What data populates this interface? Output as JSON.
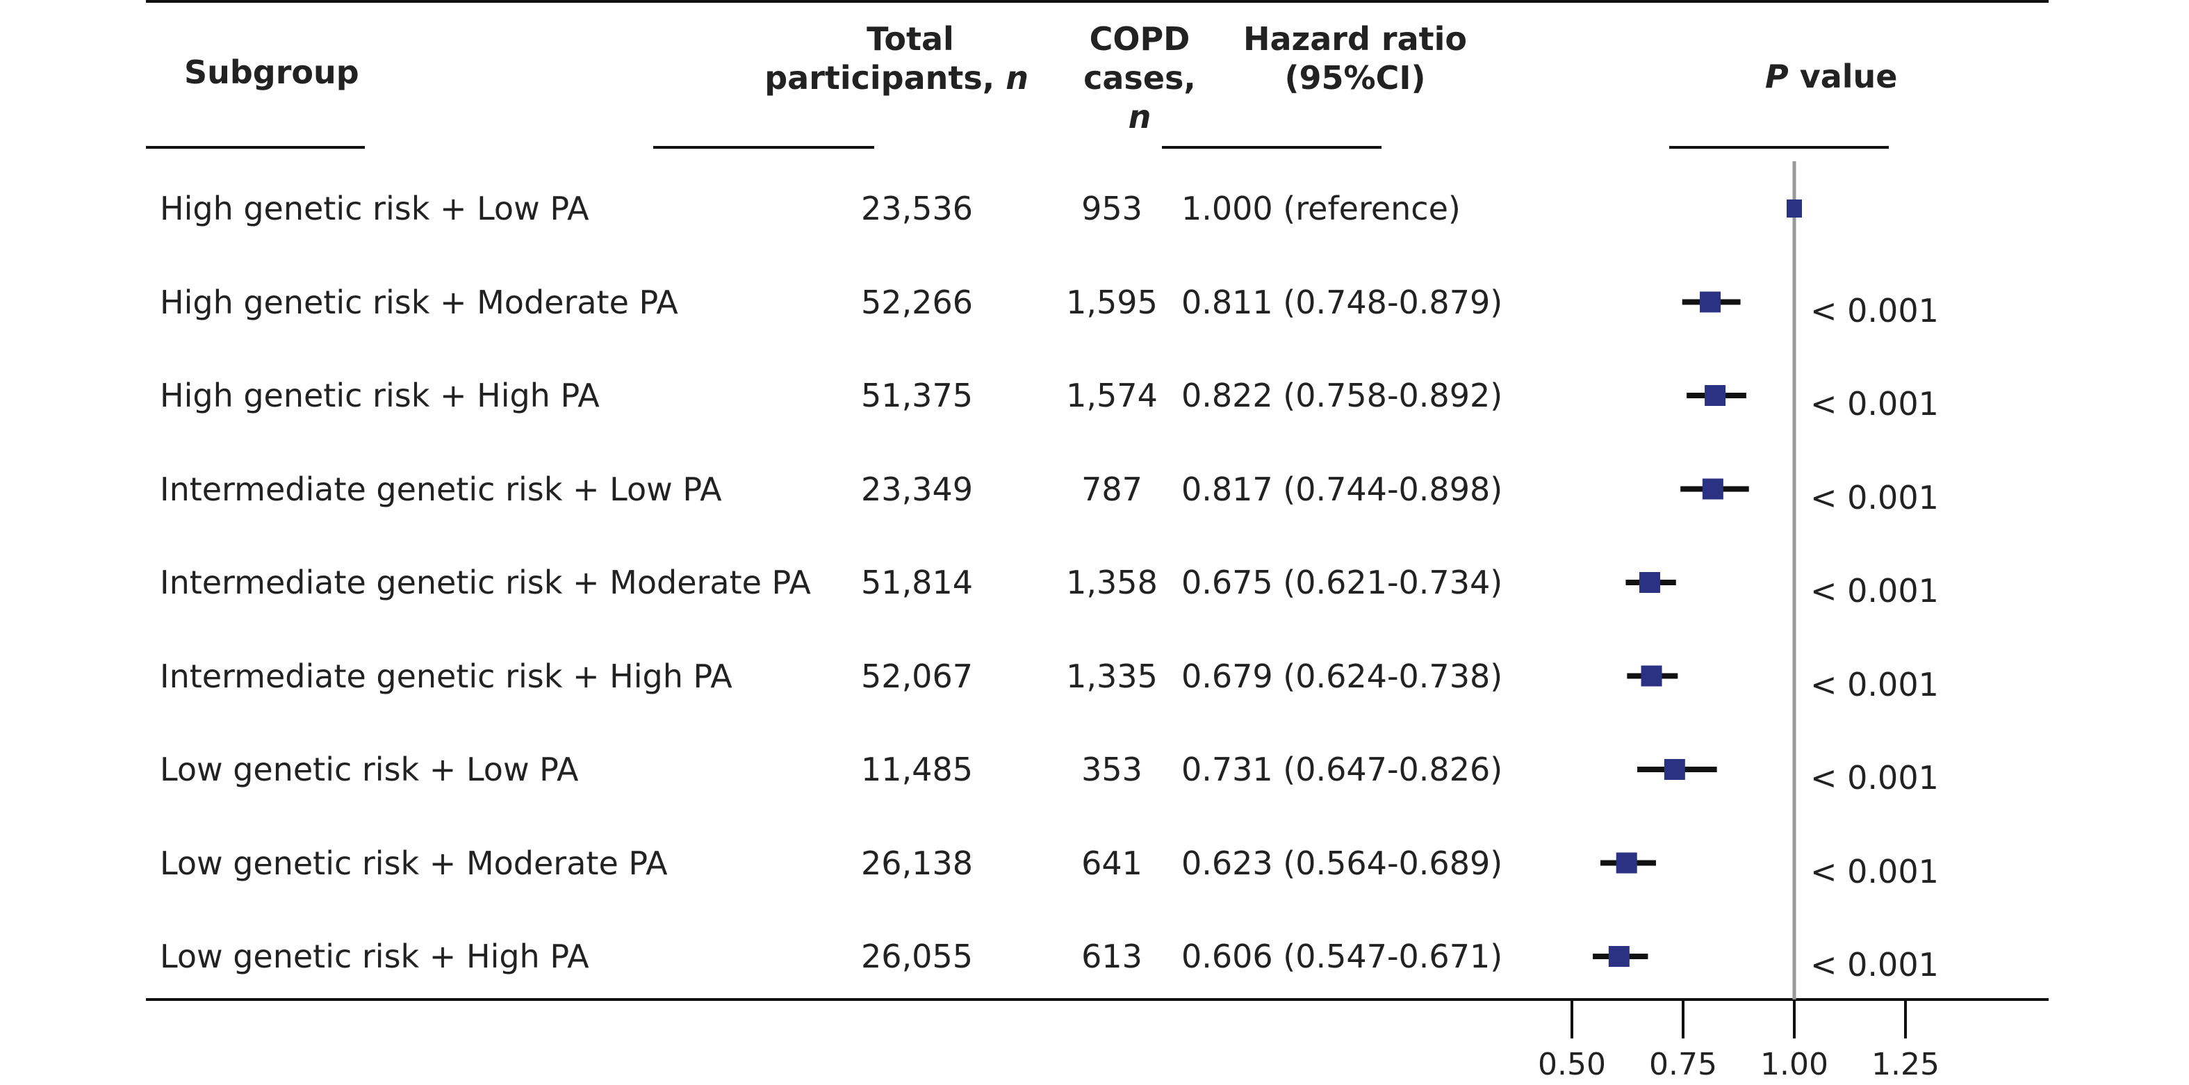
{
  "headers": {
    "subgroup": "Subgroup",
    "total_line1": "Total",
    "total_line2": "participants,",
    "total_n": "n",
    "cases_line1": "COPD",
    "cases_line2": "cases,",
    "cases_n": "n",
    "hr_line1": "Hazard ratio",
    "hr_line2": "(95%CI)",
    "p_italic": "P",
    "p_rest": "value"
  },
  "rows": [
    {
      "subgroup": "High genetic risk + Low PA",
      "total": "23,536",
      "cases": "953",
      "hr_text": "1.000 (reference)",
      "p": ""
    },
    {
      "subgroup": "High genetic risk + Moderate PA",
      "total": "52,266",
      "cases": "1,595",
      "hr_text": "0.811 (0.748-0.879)",
      "p": "< 0.001"
    },
    {
      "subgroup": "High genetic risk + High PA",
      "total": "51,375",
      "cases": "1,574",
      "hr_text": "0.822 (0.758-0.892)",
      "p": "< 0.001"
    },
    {
      "subgroup": "Intermediate genetic risk + Low PA",
      "total": "23,349",
      "cases": "787",
      "hr_text": "0.817 (0.744-0.898)",
      "p": "< 0.001"
    },
    {
      "subgroup": "Intermediate genetic risk + Moderate PA",
      "total": "51,814",
      "cases": "1,358",
      "hr_text": "0.675 (0.621-0.734)",
      "p": "< 0.001"
    },
    {
      "subgroup": "Intermediate genetic risk + High PA",
      "total": "52,067",
      "cases": "1,335",
      "hr_text": "0.679 (0.624-0.738)",
      "p": "< 0.001"
    },
    {
      "subgroup": "Low genetic risk + Low PA",
      "total": "11,485",
      "cases": "353",
      "hr_text": "0.731 (0.647-0.826)",
      "p": "< 0.001"
    },
    {
      "subgroup": "Low genetic risk + Moderate PA",
      "total": "26,138",
      "cases": "641",
      "hr_text": "0.623 (0.564-0.689)",
      "p": "< 0.001"
    },
    {
      "subgroup": "Low genetic risk + High PA",
      "total": "26,055",
      "cases": "613",
      "hr_text": "0.606 (0.547-0.671)",
      "p": "< 0.001"
    }
  ],
  "chart_data": {
    "type": "forest",
    "title": "",
    "xlabel": "",
    "ylabel": "",
    "reference_line": 1.0,
    "xlim": [
      0.5,
      1.25
    ],
    "xticks": [
      0.5,
      0.75,
      1.0,
      1.25
    ],
    "xtick_labels": [
      "0.50",
      "0.75",
      "1.00",
      "1.25"
    ],
    "categories": [
      "High genetic risk + Low PA",
      "High genetic risk + Moderate PA",
      "High genetic risk + High PA",
      "Intermediate genetic risk + Low PA",
      "Intermediate genetic risk + Moderate PA",
      "Intermediate genetic risk + High PA",
      "Low genetic risk + Low PA",
      "Low genetic risk + Moderate PA",
      "Low genetic risk + High PA"
    ],
    "values": [
      1.0,
      0.811,
      0.822,
      0.817,
      0.675,
      0.679,
      0.731,
      0.623,
      0.606
    ],
    "ci_low": [
      1.0,
      0.748,
      0.758,
      0.744,
      0.621,
      0.624,
      0.647,
      0.564,
      0.547
    ],
    "ci_high": [
      1.0,
      0.879,
      0.892,
      0.898,
      0.734,
      0.738,
      0.826,
      0.689,
      0.671
    ],
    "colors": {
      "marker": "#2b3183",
      "ci_line": "#111111",
      "reference_line": "#999999",
      "rules": "#111111"
    }
  }
}
